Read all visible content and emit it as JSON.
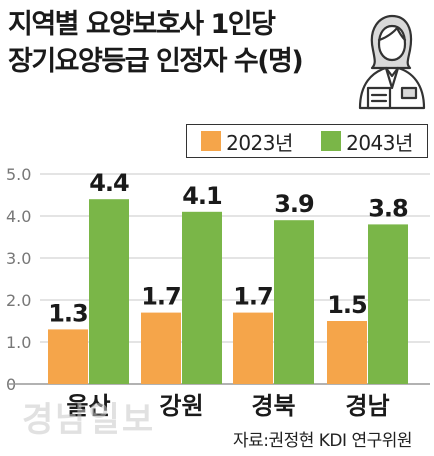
{
  "title": {
    "line1": "지역별 요양보호사 1인당",
    "line2": "장기요양등급 인정자 수(명)"
  },
  "icon": "caregiver-person-icon",
  "colors": {
    "series_2023": "#f5a54a",
    "series_2043": "#7ab648",
    "grid": "#c8c8c8",
    "axis_text": "#777777"
  },
  "source": "자료:권정현 KDI 연구위원",
  "watermark": "경남일보",
  "chart_data": {
    "type": "bar",
    "categories": [
      "울산",
      "강원",
      "경북",
      "경남"
    ],
    "series": [
      {
        "name": "2023년",
        "values": [
          1.3,
          1.7,
          1.7,
          1.5
        ],
        "labels": [
          "1.3",
          "1.7",
          "1.7",
          "1.5"
        ]
      },
      {
        "name": "2043년",
        "values": [
          4.4,
          4.1,
          3.9,
          3.8
        ],
        "labels": [
          "4.4",
          "4.1",
          "3.9",
          "3.8"
        ]
      }
    ],
    "title": "지역별 요양보호사 1인당 장기요양등급 인정자 수(명)",
    "xlabel": "",
    "ylabel": "",
    "ylim": [
      0,
      5
    ],
    "yticks": [
      "0",
      "1.0",
      "2.0",
      "3.0",
      "4.0",
      "5.0"
    ],
    "grid": true,
    "legend_position": "top-right"
  }
}
